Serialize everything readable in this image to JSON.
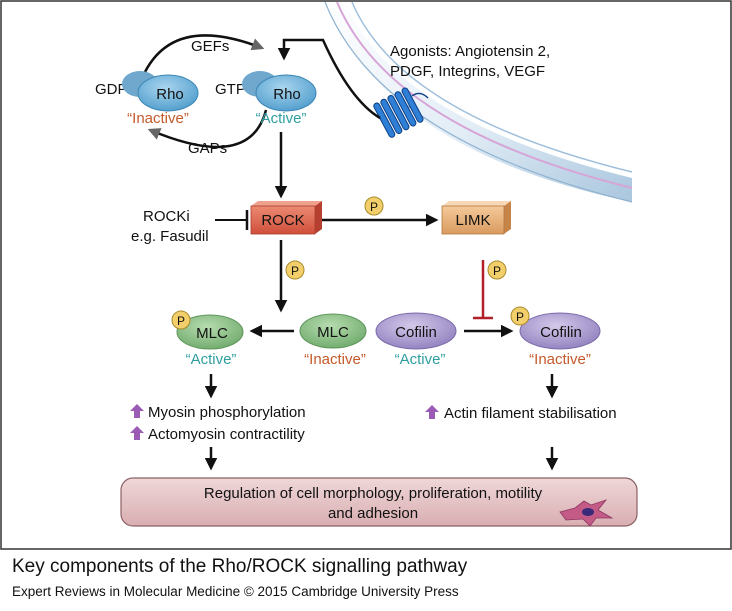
{
  "colors": {
    "rho": "#6fb3dc",
    "rock": "#e06a55",
    "limk": "#e9b27c",
    "mlc": "#8fc38a",
    "cofilin": "#b2a2d4",
    "phospho": "#f2cf6a",
    "inactive_label": "#c55a2b",
    "active_label": "#2f9ea1",
    "up_arrow": "#9b5bb5",
    "inhibit": "#b4202a",
    "outcome_box": "#e8c9cb",
    "receptor": "#2f7fd6"
  },
  "rho_cycle": {
    "gdp": "GDP",
    "gtp": "GTP",
    "rho_inactive": "Rho",
    "rho_active": "Rho",
    "inactive_label": "“Inactive”",
    "active_label": "“Active”",
    "gefs": "GEFs",
    "gaps": "GAPs"
  },
  "agonists": {
    "line1": "Agonists: Angiotensin 2,",
    "line2": "PDGF, Integrins, VEGF"
  },
  "inhibitor": {
    "line1": "ROCKi",
    "line2": "e.g. Fasudil"
  },
  "kinases": {
    "rock": "ROCK",
    "limk": "LIMK",
    "phospho": "P"
  },
  "mlc": {
    "active_name": "MLC",
    "inactive_name": "MLC",
    "active_label": "“Active”",
    "inactive_label": "“Inactive”"
  },
  "cofilin": {
    "active_name": "Cofilin",
    "inactive_name": "Cofilin",
    "active_label": "“Active”",
    "inactive_label": "“Inactive”"
  },
  "effects": {
    "myosin": "Myosin phosphorylation",
    "actomyosin": "Actomyosin contractility",
    "actin": "Actin filament stabilisation"
  },
  "outcome": {
    "line1": "Regulation of cell morphology, proliferation, motility",
    "line2": "and adhesion"
  },
  "caption": {
    "title": "Key components of the Rho/ROCK signalling pathway",
    "credit": "Expert Reviews in Molecular Medicine © 2015 Cambridge University Press"
  }
}
